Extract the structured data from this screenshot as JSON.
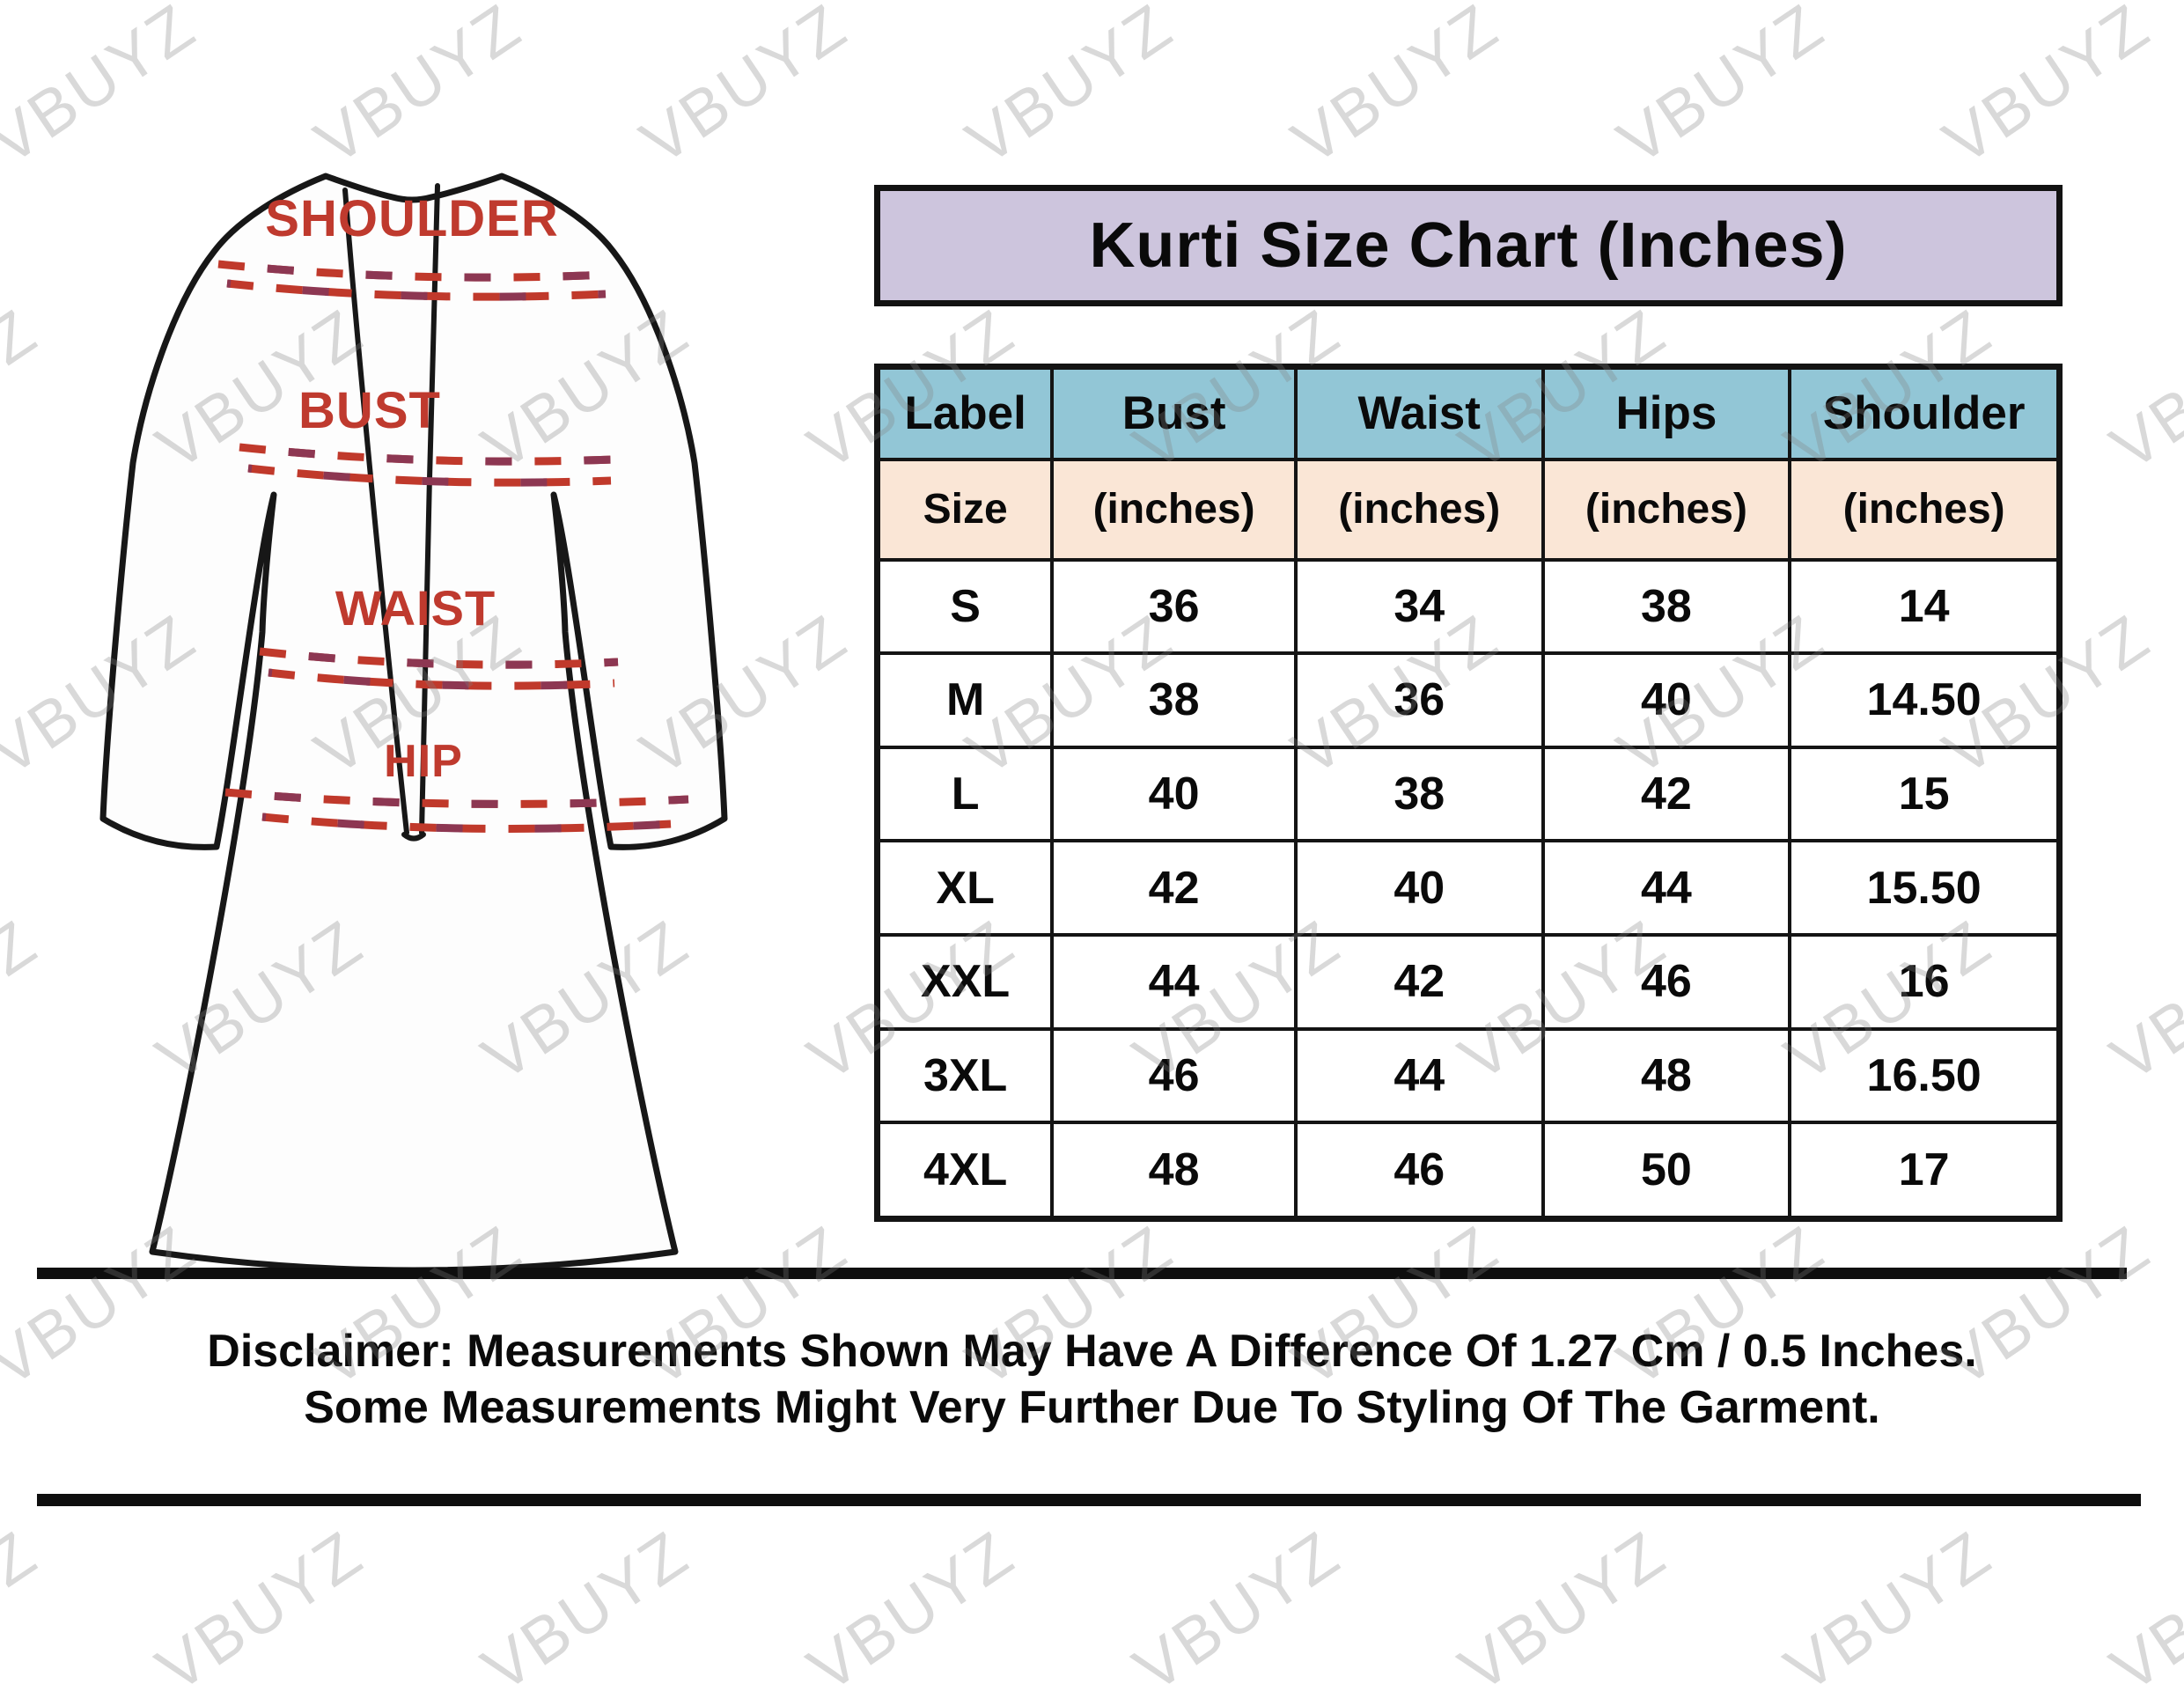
{
  "watermark": {
    "text": "VBUYZ"
  },
  "title": {
    "text": "Kurti Size Chart (Inches)"
  },
  "garment": {
    "labels": {
      "shoulder": "SHOULDER",
      "bust": "BUST",
      "waist": "WAIST",
      "hip": "HIP"
    }
  },
  "size_chart": {
    "columns": [
      "Label",
      "Bust",
      "Waist",
      "Hips",
      "Shoulder"
    ],
    "subheader": [
      "Size",
      "(inches)",
      "(inches)",
      "(inches)",
      "(inches)"
    ],
    "rows": [
      {
        "label": "S",
        "bust": "36",
        "waist": "34",
        "hips": "38",
        "shoulder": "14"
      },
      {
        "label": "M",
        "bust": "38",
        "waist": "36",
        "hips": "40",
        "shoulder": "14.50"
      },
      {
        "label": "L",
        "bust": "40",
        "waist": "38",
        "hips": "42",
        "shoulder": "15"
      },
      {
        "label": "XL",
        "bust": "42",
        "waist": "40",
        "hips": "44",
        "shoulder": "15.50"
      },
      {
        "label": "XXL",
        "bust": "44",
        "waist": "42",
        "hips": "46",
        "shoulder": "16"
      },
      {
        "label": "3XL",
        "bust": "46",
        "waist": "44",
        "hips": "48",
        "shoulder": "16.50"
      },
      {
        "label": "4XL",
        "bust": "48",
        "waist": "46",
        "hips": "50",
        "shoulder": "17"
      }
    ]
  },
  "disclaimer": {
    "line1": "Disclaimer: Measurements Shown May Have A Difference Of 1.27 Cm / 0.5 Inches.",
    "line2": "Some Measurements Might Very Further Due To Styling Of The Garment."
  },
  "colors": {
    "banner_bg": "#cdc5dd",
    "header_bg": "#92c6d6",
    "subheader_bg": "#fae6d6",
    "border": "#141414",
    "garment_label_red": "#bf3a2e",
    "dash_red": "#c0392b",
    "dash_maroon": "#8d3752",
    "watermark_gray": "rgba(128,128,128,0.30)"
  },
  "chart_data": {
    "type": "table",
    "title": "Kurti Size Chart (Inches)",
    "columns": [
      "Label Size",
      "Bust (inches)",
      "Waist (inches)",
      "Hips (inches)",
      "Shoulder (inches)"
    ],
    "rows": [
      [
        "S",
        36,
        34,
        38,
        14
      ],
      [
        "M",
        38,
        36,
        40,
        14.5
      ],
      [
        "L",
        40,
        38,
        42,
        15
      ],
      [
        "XL",
        42,
        40,
        44,
        15.5
      ],
      [
        "XXL",
        44,
        42,
        46,
        16
      ],
      [
        "3XL",
        46,
        44,
        48,
        16.5
      ],
      [
        "4XL",
        48,
        46,
        50,
        17
      ]
    ]
  }
}
